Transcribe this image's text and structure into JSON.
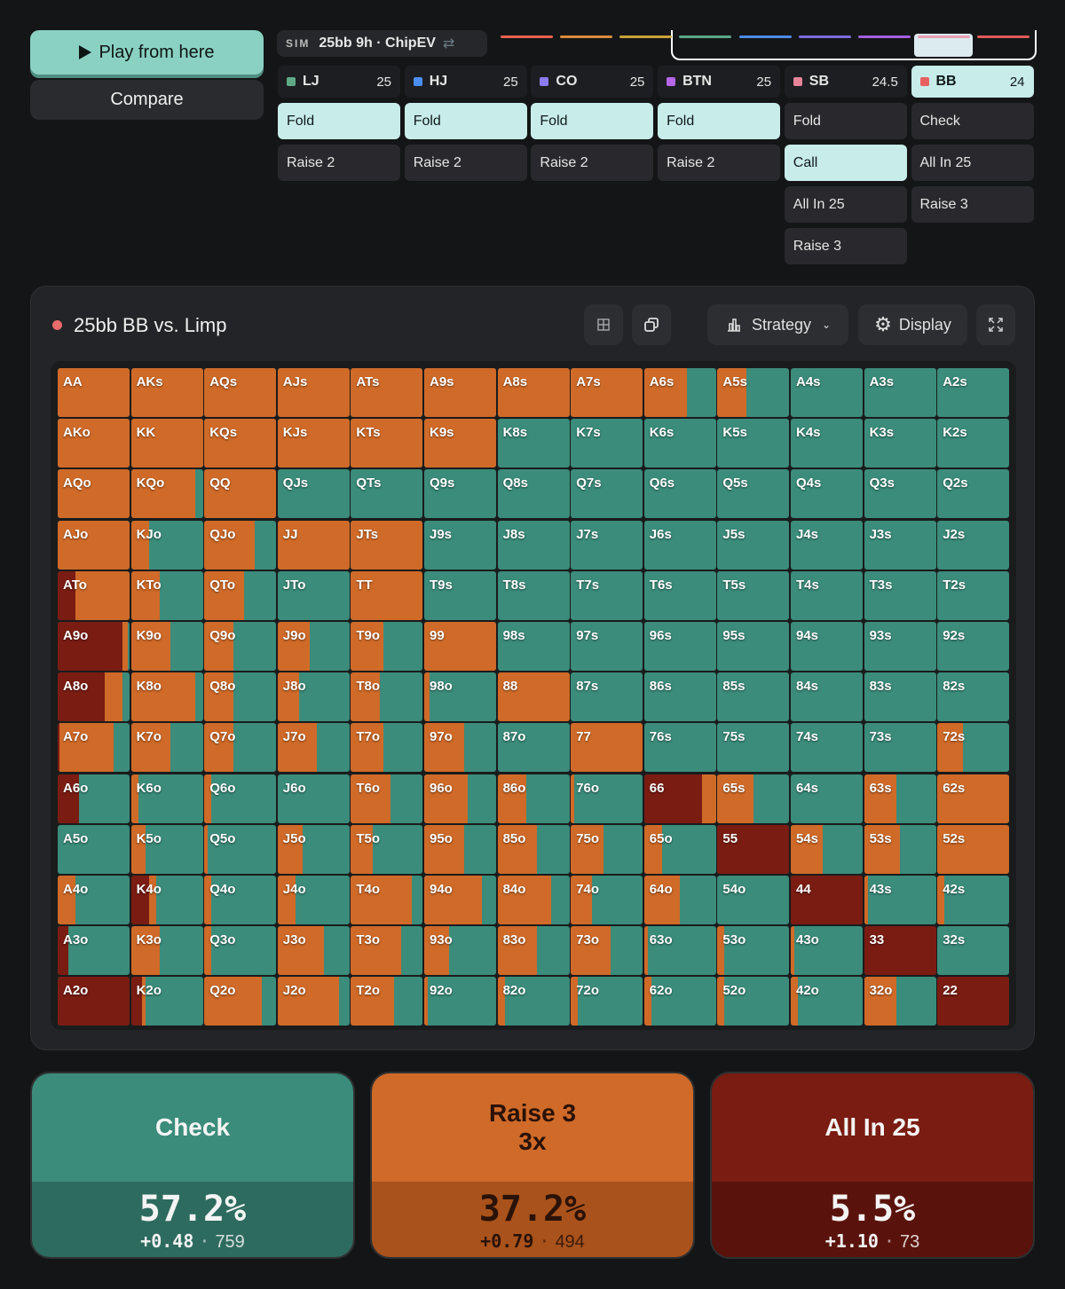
{
  "controls": {
    "play_label": "Play from here",
    "compare_label": "Compare"
  },
  "sim": {
    "tag": "SIM",
    "title": "25bb 9h · ChipEV",
    "swap_icon": "⇄"
  },
  "history_colors": [
    "#e8614f",
    "#d98a3d",
    "#c8a13a",
    "#5aa78a",
    "#4d8ce8",
    "#7b6be0",
    "#a35fe0",
    "#e8a0b0",
    "#e05a5a"
  ],
  "positions": [
    {
      "name": "LJ",
      "stack": "25",
      "color": "#5fa987",
      "actions": [
        "Fold",
        "Raise 2"
      ],
      "selected": 0
    },
    {
      "name": "HJ",
      "stack": "25",
      "color": "#4a8ff0",
      "actions": [
        "Fold",
        "Raise 2"
      ],
      "selected": 0
    },
    {
      "name": "CO",
      "stack": "25",
      "color": "#8b7cf0",
      "actions": [
        "Fold",
        "Raise 2"
      ],
      "selected": 0
    },
    {
      "name": "BTN",
      "stack": "25",
      "color": "#b567e8",
      "actions": [
        "Fold",
        "Raise 2"
      ],
      "selected": 0
    },
    {
      "name": "SB",
      "stack": "24.5",
      "color": "#e6849a",
      "actions": [
        "Fold",
        "Call",
        "All In 25",
        "Raise 3"
      ],
      "selected": 1
    },
    {
      "name": "BB",
      "stack": "24",
      "color": "#e85f5f",
      "actions": [
        "Check",
        "All In 25",
        "Raise 3"
      ],
      "selected": -1,
      "active": true
    }
  ],
  "panel": {
    "title": "25bb BB vs. Limp",
    "strategy_label": "Strategy",
    "display_label": "Display"
  },
  "colors": {
    "check": "#3b8c7b",
    "raise": "#d06a28",
    "allin": "#7a1c12"
  },
  "hand_grid": [
    [
      {
        "h": "AA",
        "a": 0,
        "r": 100
      },
      {
        "h": "AKs",
        "a": 0,
        "r": 100
      },
      {
        "h": "AQs",
        "a": 0,
        "r": 100
      },
      {
        "h": "AJs",
        "a": 0,
        "r": 100
      },
      {
        "h": "ATs",
        "a": 0,
        "r": 100
      },
      {
        "h": "A9s",
        "a": 0,
        "r": 100
      },
      {
        "h": "A8s",
        "a": 0,
        "r": 100
      },
      {
        "h": "A7s",
        "a": 0,
        "r": 100
      },
      {
        "h": "A6s",
        "a": 0,
        "r": 60
      },
      {
        "h": "A5s",
        "a": 0,
        "r": 40
      },
      {
        "h": "A4s",
        "a": 0,
        "r": 0
      },
      {
        "h": "A3s",
        "a": 0,
        "r": 0
      },
      {
        "h": "A2s",
        "a": 0,
        "r": 0
      }
    ],
    [
      {
        "h": "AKo",
        "a": 0,
        "r": 100
      },
      {
        "h": "KK",
        "a": 0,
        "r": 100
      },
      {
        "h": "KQs",
        "a": 0,
        "r": 100
      },
      {
        "h": "KJs",
        "a": 0,
        "r": 100
      },
      {
        "h": "KTs",
        "a": 0,
        "r": 100
      },
      {
        "h": "K9s",
        "a": 0,
        "r": 100
      },
      {
        "h": "K8s",
        "a": 0,
        "r": 0
      },
      {
        "h": "K7s",
        "a": 0,
        "r": 0
      },
      {
        "h": "K6s",
        "a": 0,
        "r": 0
      },
      {
        "h": "K5s",
        "a": 0,
        "r": 0
      },
      {
        "h": "K4s",
        "a": 0,
        "r": 0
      },
      {
        "h": "K3s",
        "a": 0,
        "r": 0
      },
      {
        "h": "K2s",
        "a": 0,
        "r": 0
      }
    ],
    [
      {
        "h": "AQo",
        "a": 0,
        "r": 100
      },
      {
        "h": "KQo",
        "a": 0,
        "r": 90
      },
      {
        "h": "QQ",
        "a": 0,
        "r": 100
      },
      {
        "h": "QJs",
        "a": 0,
        "r": 0
      },
      {
        "h": "QTs",
        "a": 0,
        "r": 0
      },
      {
        "h": "Q9s",
        "a": 0,
        "r": 0
      },
      {
        "h": "Q8s",
        "a": 0,
        "r": 0
      },
      {
        "h": "Q7s",
        "a": 0,
        "r": 0
      },
      {
        "h": "Q6s",
        "a": 0,
        "r": 0
      },
      {
        "h": "Q5s",
        "a": 0,
        "r": 0
      },
      {
        "h": "Q4s",
        "a": 0,
        "r": 0
      },
      {
        "h": "Q3s",
        "a": 0,
        "r": 0
      },
      {
        "h": "Q2s",
        "a": 0,
        "r": 0
      }
    ],
    [
      {
        "h": "AJo",
        "a": 0,
        "r": 100
      },
      {
        "h": "KJo",
        "a": 0,
        "r": 25
      },
      {
        "h": "QJo",
        "a": 0,
        "r": 70
      },
      {
        "h": "JJ",
        "a": 0,
        "r": 100
      },
      {
        "h": "JTs",
        "a": 0,
        "r": 100
      },
      {
        "h": "J9s",
        "a": 0,
        "r": 0
      },
      {
        "h": "J8s",
        "a": 0,
        "r": 0
      },
      {
        "h": "J7s",
        "a": 0,
        "r": 0
      },
      {
        "h": "J6s",
        "a": 0,
        "r": 0
      },
      {
        "h": "J5s",
        "a": 0,
        "r": 0
      },
      {
        "h": "J4s",
        "a": 0,
        "r": 0
      },
      {
        "h": "J3s",
        "a": 0,
        "r": 0
      },
      {
        "h": "J2s",
        "a": 0,
        "r": 0
      }
    ],
    [
      {
        "h": "ATo",
        "a": 25,
        "r": 75
      },
      {
        "h": "KTo",
        "a": 0,
        "r": 40
      },
      {
        "h": "QTo",
        "a": 0,
        "r": 55
      },
      {
        "h": "JTo",
        "a": 0,
        "r": 0
      },
      {
        "h": "TT",
        "a": 0,
        "r": 100
      },
      {
        "h": "T9s",
        "a": 0,
        "r": 0
      },
      {
        "h": "T8s",
        "a": 0,
        "r": 0
      },
      {
        "h": "T7s",
        "a": 0,
        "r": 0
      },
      {
        "h": "T6s",
        "a": 0,
        "r": 0
      },
      {
        "h": "T5s",
        "a": 0,
        "r": 0
      },
      {
        "h": "T4s",
        "a": 0,
        "r": 0
      },
      {
        "h": "T3s",
        "a": 0,
        "r": 0
      },
      {
        "h": "T2s",
        "a": 0,
        "r": 0
      }
    ],
    [
      {
        "h": "A9o",
        "a": 90,
        "r": 8
      },
      {
        "h": "K9o",
        "a": 0,
        "r": 55
      },
      {
        "h": "Q9o",
        "a": 0,
        "r": 40
      },
      {
        "h": "J9o",
        "a": 0,
        "r": 45
      },
      {
        "h": "T9o",
        "a": 0,
        "r": 45
      },
      {
        "h": "99",
        "a": 0,
        "r": 100
      },
      {
        "h": "98s",
        "a": 0,
        "r": 0
      },
      {
        "h": "97s",
        "a": 0,
        "r": 0
      },
      {
        "h": "96s",
        "a": 0,
        "r": 0
      },
      {
        "h": "95s",
        "a": 0,
        "r": 0
      },
      {
        "h": "94s",
        "a": 0,
        "r": 0
      },
      {
        "h": "93s",
        "a": 0,
        "r": 0
      },
      {
        "h": "92s",
        "a": 0,
        "r": 0
      }
    ],
    [
      {
        "h": "A8o",
        "a": 65,
        "r": 25
      },
      {
        "h": "K8o",
        "a": 0,
        "r": 90
      },
      {
        "h": "Q8o",
        "a": 0,
        "r": 40
      },
      {
        "h": "J8o",
        "a": 0,
        "r": 30
      },
      {
        "h": "T8o",
        "a": 0,
        "r": 40
      },
      {
        "h": "98o",
        "a": 0,
        "r": 8
      },
      {
        "h": "88",
        "a": 0,
        "r": 100
      },
      {
        "h": "87s",
        "a": 0,
        "r": 0
      },
      {
        "h": "86s",
        "a": 0,
        "r": 0
      },
      {
        "h": "85s",
        "a": 0,
        "r": 0
      },
      {
        "h": "84s",
        "a": 0,
        "r": 0
      },
      {
        "h": "83s",
        "a": 0,
        "r": 0
      },
      {
        "h": "82s",
        "a": 0,
        "r": 0
      }
    ],
    [
      {
        "h": "A7o",
        "a": 3,
        "r": 75
      },
      {
        "h": "K7o",
        "a": 0,
        "r": 55
      },
      {
        "h": "Q7o",
        "a": 0,
        "r": 40
      },
      {
        "h": "J7o",
        "a": 0,
        "r": 55
      },
      {
        "h": "T7o",
        "a": 0,
        "r": 45
      },
      {
        "h": "97o",
        "a": 0,
        "r": 55
      },
      {
        "h": "87o",
        "a": 0,
        "r": 0
      },
      {
        "h": "77",
        "a": 0,
        "r": 100
      },
      {
        "h": "76s",
        "a": 0,
        "r": 0
      },
      {
        "h": "75s",
        "a": 0,
        "r": 0
      },
      {
        "h": "74s",
        "a": 0,
        "r": 0
      },
      {
        "h": "73s",
        "a": 0,
        "r": 0
      },
      {
        "h": "72s",
        "a": 0,
        "r": 35
      }
    ],
    [
      {
        "h": "A6o",
        "a": 30,
        "r": 0
      },
      {
        "h": "K6o",
        "a": 0,
        "r": 10
      },
      {
        "h": "Q6o",
        "a": 0,
        "r": 10
      },
      {
        "h": "J6o",
        "a": 0,
        "r": 0
      },
      {
        "h": "T6o",
        "a": 0,
        "r": 55
      },
      {
        "h": "96o",
        "a": 0,
        "r": 60
      },
      {
        "h": "86o",
        "a": 0,
        "r": 40
      },
      {
        "h": "76o",
        "a": 0,
        "r": 5
      },
      {
        "h": "66",
        "a": 80,
        "r": 20
      },
      {
        "h": "65s",
        "a": 0,
        "r": 50
      },
      {
        "h": "64s",
        "a": 0,
        "r": 0
      },
      {
        "h": "63s",
        "a": 0,
        "r": 45
      },
      {
        "h": "62s",
        "a": 0,
        "r": 100
      }
    ],
    [
      {
        "h": "A5o",
        "a": 0,
        "r": 0
      },
      {
        "h": "K5o",
        "a": 0,
        "r": 20
      },
      {
        "h": "Q5o",
        "a": 0,
        "r": 5
      },
      {
        "h": "J5o",
        "a": 0,
        "r": 35
      },
      {
        "h": "T5o",
        "a": 0,
        "r": 30
      },
      {
        "h": "95o",
        "a": 0,
        "r": 55
      },
      {
        "h": "85o",
        "a": 0,
        "r": 55
      },
      {
        "h": "75o",
        "a": 0,
        "r": 45
      },
      {
        "h": "65o",
        "a": 0,
        "r": 25
      },
      {
        "h": "55",
        "a": 100,
        "r": 0
      },
      {
        "h": "54s",
        "a": 0,
        "r": 45
      },
      {
        "h": "53s",
        "a": 0,
        "r": 50
      },
      {
        "h": "52s",
        "a": 0,
        "r": 100
      }
    ],
    [
      {
        "h": "A4o",
        "a": 0,
        "r": 25
      },
      {
        "h": "K4o",
        "a": 25,
        "r": 10
      },
      {
        "h": "Q4o",
        "a": 0,
        "r": 10
      },
      {
        "h": "J4o",
        "a": 0,
        "r": 25
      },
      {
        "h": "T4o",
        "a": 0,
        "r": 85
      },
      {
        "h": "94o",
        "a": 0,
        "r": 80
      },
      {
        "h": "84o",
        "a": 0,
        "r": 75
      },
      {
        "h": "74o",
        "a": 0,
        "r": 30
      },
      {
        "h": "64o",
        "a": 0,
        "r": 50
      },
      {
        "h": "54o",
        "a": 0,
        "r": 0
      },
      {
        "h": "44",
        "a": 100,
        "r": 0
      },
      {
        "h": "43s",
        "a": 0,
        "r": 5
      },
      {
        "h": "42s",
        "a": 0,
        "r": 10
      }
    ],
    [
      {
        "h": "A3o",
        "a": 15,
        "r": 0
      },
      {
        "h": "K3o",
        "a": 0,
        "r": 40
      },
      {
        "h": "Q3o",
        "a": 0,
        "r": 10
      },
      {
        "h": "J3o",
        "a": 0,
        "r": 65
      },
      {
        "h": "T3o",
        "a": 0,
        "r": 70
      },
      {
        "h": "93o",
        "a": 0,
        "r": 35
      },
      {
        "h": "83o",
        "a": 0,
        "r": 55
      },
      {
        "h": "73o",
        "a": 0,
        "r": 55
      },
      {
        "h": "63o",
        "a": 0,
        "r": 5
      },
      {
        "h": "53o",
        "a": 0,
        "r": 10
      },
      {
        "h": "43o",
        "a": 0,
        "r": 5
      },
      {
        "h": "33",
        "a": 100,
        "r": 0
      },
      {
        "h": "32s",
        "a": 0,
        "r": 0
      }
    ],
    [
      {
        "h": "A2o",
        "a": 100,
        "r": 0
      },
      {
        "h": "K2o",
        "a": 15,
        "r": 5
      },
      {
        "h": "Q2o",
        "a": 0,
        "r": 80
      },
      {
        "h": "J2o",
        "a": 0,
        "r": 85
      },
      {
        "h": "T2o",
        "a": 0,
        "r": 60
      },
      {
        "h": "92o",
        "a": 0,
        "r": 5
      },
      {
        "h": "82o",
        "a": 0,
        "r": 10
      },
      {
        "h": "72o",
        "a": 0,
        "r": 10
      },
      {
        "h": "62o",
        "a": 0,
        "r": 10
      },
      {
        "h": "52o",
        "a": 0,
        "r": 10
      },
      {
        "h": "42o",
        "a": 0,
        "r": 10
      },
      {
        "h": "32o",
        "a": 0,
        "r": 45
      },
      {
        "h": "22",
        "a": 100,
        "r": 0
      }
    ]
  ],
  "summary": [
    {
      "line1": "Check",
      "line2": "",
      "pct": "57.2%",
      "ev": "+0.48",
      "count": "759",
      "top": "#3b8c7b",
      "bottom": "#2e6b5f",
      "fg": "#f4f4f4"
    },
    {
      "line1": "Raise 3",
      "line2": "3x",
      "pct": "37.2%",
      "ev": "+0.79",
      "count": "494",
      "top": "#d06a28",
      "bottom": "#a9521b",
      "fg": "#2a1208"
    },
    {
      "line1": "All In 25",
      "line2": "",
      "pct": "5.5%",
      "ev": "+1.10",
      "count": "73",
      "top": "#7a1c12",
      "bottom": "#5a130c",
      "fg": "#f4f4f4"
    }
  ]
}
